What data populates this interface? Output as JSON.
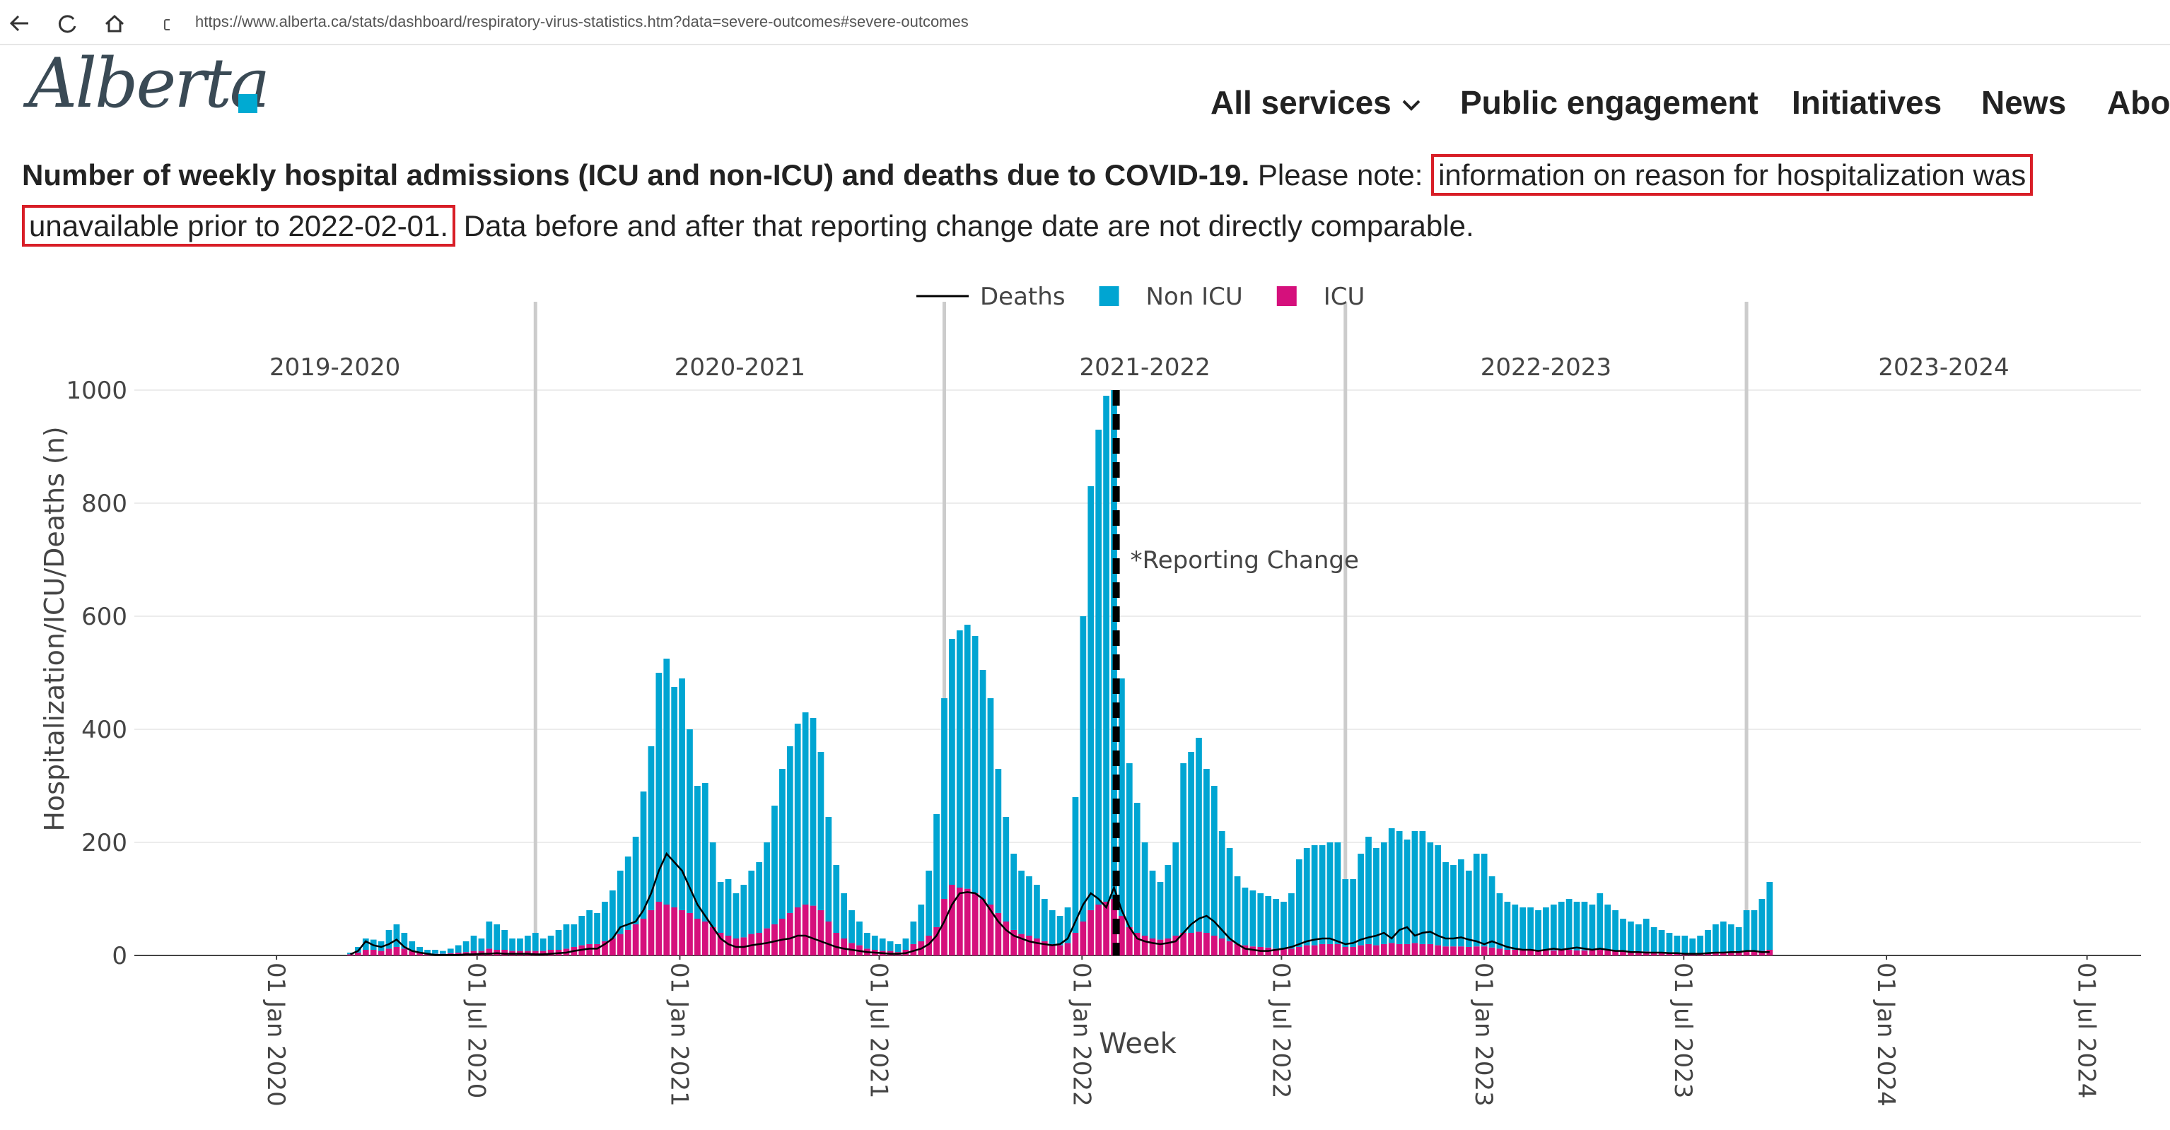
{
  "browser": {
    "url": "https://www.alberta.ca/stats/dashboard/respiratory-virus-statistics.htm?data=severe-outcomes#severe-outcomes"
  },
  "header": {
    "logo": "Alberta",
    "nav": [
      "All services",
      "Public engagement",
      "Initiatives",
      "News",
      "About"
    ]
  },
  "intro": {
    "bold": "Number of weekly hospital admissions (ICU and non-ICU) and deaths due to COVID-19.",
    "note": "Please note:",
    "highlight": "information on reason for hospitalization was unavailable prior to 2022-02-01.",
    "rest": "Data before and after that reporting change date are not directly comparable."
  },
  "chart_data": {
    "type": "bar",
    "barmode": "stack",
    "x_title": "Week",
    "y_title": "Hospitalization/ICU/Deaths (n)",
    "xlim": [
      "2019-08-25",
      "2024-08-19"
    ],
    "xticks": [
      {
        "value": "2020-01-01",
        "label": "01 Jan 2020"
      },
      {
        "value": "2020-07-01",
        "label": "01 Jul 2020"
      },
      {
        "value": "2021-01-01",
        "label": "01 Jan 2021"
      },
      {
        "value": "2021-07-01",
        "label": "01 Jul 2021"
      },
      {
        "value": "2022-01-01",
        "label": "01 Jan 2022"
      },
      {
        "value": "2022-07-01",
        "label": "01 Jul 2022"
      },
      {
        "value": "2023-01-01",
        "label": "01 Jan 2023"
      },
      {
        "value": "2023-07-01",
        "label": "01 Jul 2023"
      },
      {
        "value": "2024-01-01",
        "label": "01 Jan 2024"
      },
      {
        "value": "2024-07-01",
        "label": "01 Jul 2024"
      }
    ],
    "ylim": [
      0,
      1000
    ],
    "yticks": [
      0,
      200,
      400,
      600,
      800,
      1000
    ],
    "grid": true,
    "legend": "top",
    "season_boundaries": [
      "2020-08-23",
      "2021-08-29",
      "2022-08-28",
      "2023-08-27"
    ],
    "seasons": [
      "2019-2020",
      "2020-2021",
      "2021-2022",
      "2022-2023",
      "2023-2024"
    ],
    "annotation": {
      "text": "*Reporting Change",
      "x": "2022-02-01",
      "y": 700
    },
    "x": [
      "2020-03-08",
      "2020-03-15",
      "2020-03-22",
      "2020-03-29",
      "2020-04-05",
      "2020-04-12",
      "2020-04-19",
      "2020-04-26",
      "2020-05-03",
      "2020-05-10",
      "2020-05-17",
      "2020-05-24",
      "2020-05-31",
      "2020-06-07",
      "2020-06-14",
      "2020-06-21",
      "2020-06-28",
      "2020-07-05",
      "2020-07-12",
      "2020-07-19",
      "2020-07-26",
      "2020-08-02",
      "2020-08-09",
      "2020-08-16",
      "2020-08-23",
      "2020-08-30",
      "2020-09-06",
      "2020-09-13",
      "2020-09-20",
      "2020-09-27",
      "2020-10-04",
      "2020-10-11",
      "2020-10-18",
      "2020-10-25",
      "2020-11-01",
      "2020-11-08",
      "2020-11-15",
      "2020-11-22",
      "2020-11-29",
      "2020-12-06",
      "2020-12-13",
      "2020-12-20",
      "2020-12-27",
      "2021-01-03",
      "2021-01-10",
      "2021-01-17",
      "2021-01-24",
      "2021-01-31",
      "2021-02-07",
      "2021-02-14",
      "2021-02-21",
      "2021-02-28",
      "2021-03-07",
      "2021-03-14",
      "2021-03-21",
      "2021-03-28",
      "2021-04-04",
      "2021-04-11",
      "2021-04-18",
      "2021-04-25",
      "2021-05-02",
      "2021-05-09",
      "2021-05-16",
      "2021-05-23",
      "2021-05-30",
      "2021-06-06",
      "2021-06-13",
      "2021-06-20",
      "2021-06-27",
      "2021-07-04",
      "2021-07-11",
      "2021-07-18",
      "2021-07-25",
      "2021-08-01",
      "2021-08-08",
      "2021-08-15",
      "2021-08-22",
      "2021-08-29",
      "2021-09-05",
      "2021-09-12",
      "2021-09-19",
      "2021-09-26",
      "2021-10-03",
      "2021-10-10",
      "2021-10-17",
      "2021-10-24",
      "2021-10-31",
      "2021-11-07",
      "2021-11-14",
      "2021-11-21",
      "2021-11-28",
      "2021-12-05",
      "2021-12-12",
      "2021-12-19",
      "2021-12-26",
      "2022-01-02",
      "2022-01-09",
      "2022-01-16",
      "2022-01-23",
      "2022-01-30",
      "2022-02-06",
      "2022-02-13",
      "2022-02-20",
      "2022-02-27",
      "2022-03-06",
      "2022-03-13",
      "2022-03-20",
      "2022-03-27",
      "2022-04-03",
      "2022-04-10",
      "2022-04-17",
      "2022-04-24",
      "2022-05-01",
      "2022-05-08",
      "2022-05-15",
      "2022-05-22",
      "2022-05-29",
      "2022-06-05",
      "2022-06-12",
      "2022-06-19",
      "2022-06-26",
      "2022-07-03",
      "2022-07-10",
      "2022-07-17",
      "2022-07-24",
      "2022-07-31",
      "2022-08-07",
      "2022-08-14",
      "2022-08-21",
      "2022-08-28",
      "2022-09-04",
      "2022-09-11",
      "2022-09-18",
      "2022-09-25",
      "2022-10-02",
      "2022-10-09",
      "2022-10-16",
      "2022-10-23",
      "2022-10-30",
      "2022-11-06",
      "2022-11-13",
      "2022-11-20",
      "2022-11-27",
      "2022-12-04",
      "2022-12-11",
      "2022-12-18",
      "2022-12-25",
      "2023-01-01",
      "2023-01-08",
      "2023-01-15",
      "2023-01-22",
      "2023-01-29",
      "2023-02-05",
      "2023-02-12",
      "2023-02-19",
      "2023-02-26",
      "2023-03-05",
      "2023-03-12",
      "2023-03-19",
      "2023-03-26",
      "2023-04-02",
      "2023-04-09",
      "2023-04-16",
      "2023-04-23",
      "2023-04-30",
      "2023-05-07",
      "2023-05-14",
      "2023-05-21",
      "2023-05-28",
      "2023-06-04",
      "2023-06-11",
      "2023-06-18",
      "2023-06-25",
      "2023-07-02",
      "2023-07-09",
      "2023-07-16",
      "2023-07-23",
      "2023-07-30",
      "2023-08-06",
      "2023-08-13",
      "2023-08-20",
      "2023-08-27",
      "2023-09-03",
      "2023-09-10",
      "2023-09-17"
    ],
    "series": [
      {
        "name": "Deaths",
        "type": "line",
        "color": "#000000",
        "values": [
          2,
          8,
          25,
          18,
          15,
          20,
          28,
          15,
          8,
          5,
          3,
          1,
          1,
          1,
          1,
          2,
          2,
          3,
          3,
          4,
          3,
          3,
          3,
          3,
          2,
          2,
          3,
          4,
          5,
          8,
          10,
          12,
          12,
          20,
          30,
          50,
          55,
          60,
          80,
          110,
          150,
          180,
          165,
          150,
          120,
          90,
          70,
          50,
          30,
          20,
          15,
          15,
          18,
          20,
          22,
          25,
          28,
          30,
          35,
          35,
          30,
          25,
          20,
          15,
          12,
          10,
          8,
          6,
          5,
          4,
          3,
          3,
          4,
          8,
          12,
          20,
          35,
          60,
          90,
          110,
          112,
          110,
          100,
          80,
          60,
          45,
          35,
          30,
          25,
          22,
          20,
          18,
          20,
          30,
          60,
          90,
          110,
          100,
          85,
          120,
          80,
          50,
          30,
          25,
          22,
          20,
          22,
          25,
          40,
          55,
          65,
          70,
          60,
          45,
          30,
          20,
          12,
          10,
          8,
          8,
          10,
          12,
          15,
          20,
          25,
          28,
          30,
          30,
          25,
          20,
          22,
          28,
          32,
          35,
          40,
          30,
          45,
          50,
          35,
          40,
          42,
          35,
          30,
          30,
          32,
          28,
          25,
          20,
          25,
          20,
          15,
          12,
          10,
          10,
          8,
          10,
          12,
          10,
          12,
          14,
          12,
          10,
          12,
          10,
          8,
          8,
          6,
          6,
          5,
          5,
          5,
          4,
          4,
          3,
          3,
          3,
          4,
          5,
          5,
          6,
          6,
          8,
          8,
          6,
          6
        ]
      },
      {
        "name": "Non ICU",
        "type": "bar",
        "color": "#00a5d2",
        "values": [
          3,
          10,
          20,
          18,
          17,
          33,
          40,
          28,
          17,
          10,
          7,
          7,
          5,
          8,
          13,
          19,
          27,
          22,
          48,
          45,
          35,
          22,
          22,
          27,
          32,
          22,
          25,
          35,
          43,
          40,
          52,
          60,
          55,
          70,
          85,
          112,
          130,
          155,
          225,
          290,
          405,
          435,
          390,
          410,
          325,
          235,
          245,
          150,
          90,
          100,
          80,
          93,
          112,
          125,
          152,
          210,
          265,
          295,
          325,
          340,
          332,
          280,
          185,
          120,
          80,
          58,
          42,
          28,
          25,
          22,
          17,
          14,
          20,
          40,
          65,
          115,
          200,
          355,
          435,
          455,
          467,
          455,
          405,
          365,
          255,
          185,
          135,
          112,
          105,
          95,
          75,
          60,
          52,
          63,
          240,
          540,
          750,
          840,
          895,
          900,
          420,
          290,
          230,
          165,
          120,
          102,
          130,
          165,
          300,
          320,
          343,
          290,
          265,
          190,
          165,
          120,
          102,
          99,
          95,
          91,
          88,
          83,
          98,
          155,
          172,
          177,
          175,
          180,
          180,
          120,
          120,
          162,
          190,
          172,
          180,
          203,
          200,
          185,
          198,
          200,
          180,
          177,
          149,
          144,
          154,
          135,
          164,
          164,
          126,
          98,
          85,
          80,
          76,
          76,
          72,
          76,
          81,
          85,
          90,
          86,
          86,
          81,
          100,
          81,
          72,
          58,
          54,
          49,
          58,
          45,
          40,
          36,
          31,
          31,
          27,
          31,
          40,
          49,
          54,
          50,
          45,
          72,
          72,
          92,
          120
        ]
      },
      {
        "name": "ICU",
        "type": "bar",
        "color": "#d5107c",
        "values": [
          2,
          5,
          10,
          10,
          8,
          12,
          15,
          12,
          8,
          5,
          3,
          3,
          3,
          4,
          5,
          6,
          8,
          8,
          12,
          10,
          10,
          8,
          8,
          8,
          8,
          8,
          10,
          10,
          12,
          15,
          18,
          20,
          20,
          25,
          30,
          38,
          45,
          55,
          65,
          80,
          95,
          90,
          85,
          80,
          75,
          65,
          60,
          50,
          40,
          35,
          30,
          32,
          38,
          40,
          48,
          55,
          65,
          75,
          85,
          90,
          88,
          80,
          60,
          40,
          30,
          22,
          18,
          12,
          10,
          8,
          8,
          6,
          10,
          20,
          25,
          35,
          50,
          100,
          125,
          120,
          118,
          110,
          100,
          90,
          75,
          60,
          45,
          38,
          35,
          30,
          25,
          20,
          18,
          22,
          40,
          60,
          80,
          90,
          95,
          100,
          70,
          50,
          40,
          35,
          30,
          28,
          30,
          35,
          40,
          40,
          42,
          40,
          35,
          30,
          25,
          20,
          18,
          16,
          15,
          14,
          12,
          12,
          12,
          15,
          18,
          18,
          20,
          20,
          20,
          15,
          15,
          18,
          20,
          18,
          20,
          22,
          20,
          20,
          22,
          20,
          20,
          18,
          16,
          16,
          16,
          15,
          16,
          16,
          14,
          12,
          10,
          10,
          9,
          9,
          8,
          9,
          9,
          10,
          10,
          9,
          9,
          9,
          10,
          9,
          8,
          7,
          6,
          6,
          7,
          5,
          5,
          4,
          4,
          4,
          3,
          4,
          5,
          6,
          6,
          5,
          5,
          8,
          8,
          8,
          10
        ]
      }
    ]
  }
}
